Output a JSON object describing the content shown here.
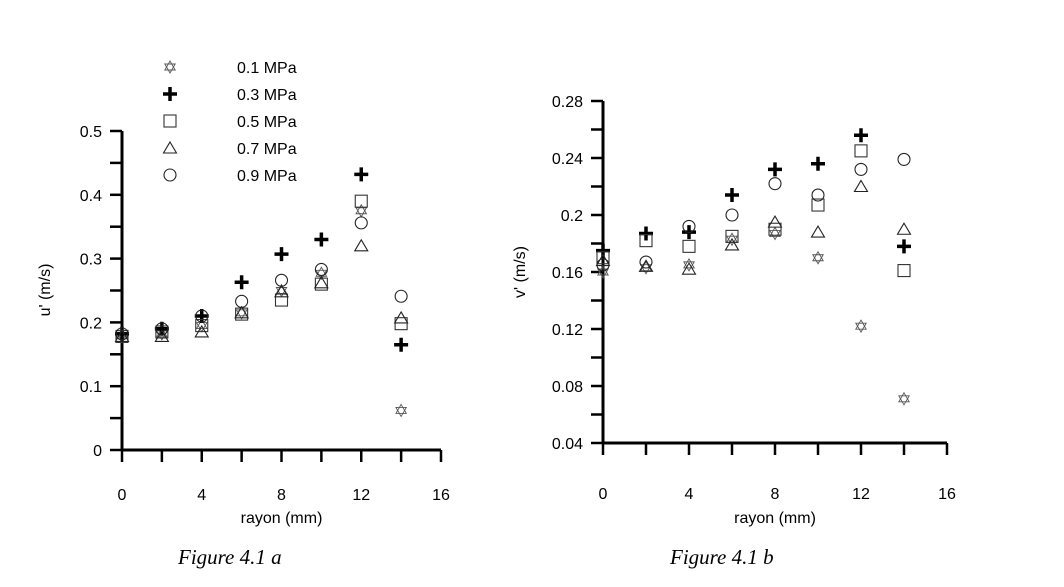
{
  "chart_data": [
    {
      "type": "scatter",
      "caption": "Figure 4.1 a",
      "xlabel": "rayon (mm)",
      "ylabel": "u' (m/s)",
      "xlim": [
        0,
        16
      ],
      "ylim": [
        0,
        0.5
      ],
      "xticks": [
        "0",
        "4",
        "8",
        "12",
        "16"
      ],
      "yticks": [
        "0",
        "0.1",
        "0.2",
        "0.3",
        "0.4",
        "0.5"
      ],
      "legend_placement": "top-left",
      "x": [
        0,
        2,
        4,
        6,
        8,
        10,
        12,
        14
      ],
      "series": [
        {
          "name": "0.1 MPa",
          "marker": "star",
          "values": [
            0.18,
            0.182,
            0.195,
            0.215,
            0.25,
            0.277,
            0.375,
            0.062
          ]
        },
        {
          "name": "0.3 MPa",
          "marker": "plus",
          "values": [
            0.182,
            0.19,
            0.21,
            0.263,
            0.307,
            0.33,
            0.432,
            0.165
          ]
        },
        {
          "name": "0.5 MPa",
          "marker": "square",
          "values": [
            0.178,
            0.185,
            0.195,
            0.213,
            0.235,
            0.26,
            0.39,
            0.198
          ]
        },
        {
          "name": "0.7 MPa",
          "marker": "triangle",
          "values": [
            0.178,
            0.178,
            0.185,
            0.215,
            0.248,
            0.262,
            0.32,
            0.207
          ]
        },
        {
          "name": "0.9 MPa",
          "marker": "circle",
          "values": [
            0.182,
            0.19,
            0.21,
            0.233,
            0.266,
            0.283,
            0.356,
            0.241
          ]
        }
      ]
    },
    {
      "type": "scatter",
      "caption": "Figure 4.1 b",
      "xlabel": "rayon (mm)",
      "ylabel": "v' (m/s)",
      "xlim": [
        0,
        16
      ],
      "ylim": [
        0.04,
        0.28
      ],
      "xticks": [
        "0",
        "4",
        "8",
        "12",
        "16"
      ],
      "yticks": [
        "0.04",
        "0.08",
        "0.12",
        "0.16",
        "0.2",
        "0.24",
        "0.28"
      ],
      "x": [
        0,
        2,
        4,
        6,
        8,
        10,
        12,
        14
      ],
      "series": [
        {
          "name": "0.1 MPa",
          "marker": "star",
          "values": [
            0.16,
            0.163,
            0.165,
            0.183,
            0.187,
            0.17,
            0.122,
            0.071
          ]
        },
        {
          "name": "0.3 MPa",
          "marker": "plus",
          "values": [
            0.175,
            0.187,
            0.188,
            0.214,
            0.232,
            0.236,
            0.256,
            0.178
          ]
        },
        {
          "name": "0.5 MPa",
          "marker": "square",
          "values": [
            0.17,
            0.182,
            0.178,
            0.185,
            0.19,
            0.207,
            0.245,
            0.161
          ]
        },
        {
          "name": "0.7 MPa",
          "marker": "triangle",
          "values": [
            0.168,
            0.164,
            0.162,
            0.179,
            0.195,
            0.188,
            0.22,
            0.19
          ]
        },
        {
          "name": "0.9 MPa",
          "marker": "circle",
          "values": [
            0.165,
            0.167,
            0.192,
            0.2,
            0.222,
            0.214,
            0.232,
            0.239
          ]
        }
      ]
    }
  ]
}
